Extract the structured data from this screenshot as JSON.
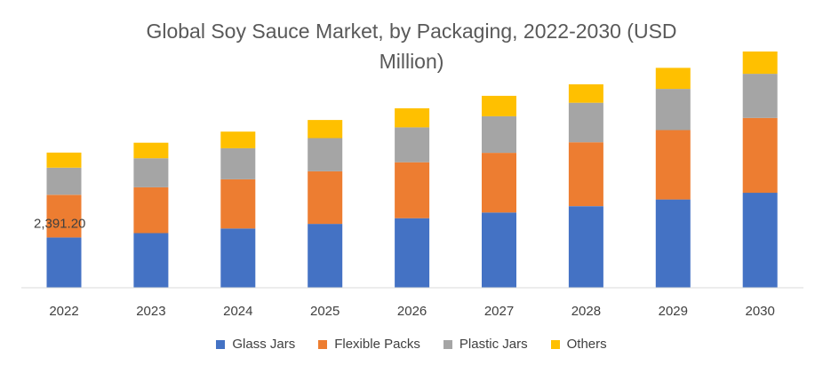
{
  "chart_data": {
    "type": "bar",
    "stacked": true,
    "title": "Global Soy Sauce Market, by Packaging, 2022-2030 (USD Million)",
    "title_lines": [
      "Global Soy Sauce Market, by Packaging, 2022-2030 (USD",
      "Million)"
    ],
    "categories": [
      "2022",
      "2023",
      "2024",
      "2025",
      "2026",
      "2027",
      "2028",
      "2029",
      "2030"
    ],
    "series": [
      {
        "name": "Glass Jars",
        "color": "#4472C4",
        "values": [
          2391.2,
          2600,
          2820,
          3040,
          3310,
          3580,
          3880,
          4200,
          4520
        ]
      },
      {
        "name": "Flexible Packs",
        "color": "#ED7D31",
        "values": [
          2030,
          2180,
          2340,
          2500,
          2660,
          2840,
          3040,
          3300,
          3560
        ]
      },
      {
        "name": "Plastic Jars",
        "color": "#A5A5A5",
        "values": [
          1290,
          1380,
          1480,
          1580,
          1660,
          1740,
          1880,
          1960,
          2100
        ]
      },
      {
        "name": "Others",
        "color": "#FFC000",
        "values": [
          720,
          740,
          790,
          860,
          910,
          970,
          880,
          1000,
          1060
        ]
      }
    ],
    "data_labels": [
      {
        "series": "Glass Jars",
        "category": "2022",
        "text": "2,391.20"
      }
    ],
    "ylim": [
      0,
      12000
    ],
    "grid": false,
    "legend_position": "bottom"
  }
}
